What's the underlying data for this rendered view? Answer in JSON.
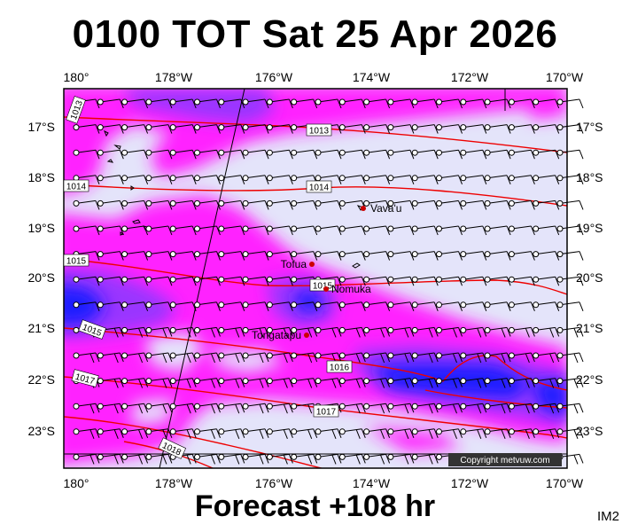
{
  "header": {
    "title": "0100 TOT Sat 25 Apr 2026"
  },
  "footer": {
    "label": "Forecast +108 hr",
    "tag": "IM2"
  },
  "copyright": "Copyright metvuw.com",
  "axes": {
    "lon_ticks": [
      "180°",
      "178°W",
      "176°W",
      "174°W",
      "172°W",
      "170°W"
    ],
    "lat_ticks": [
      "17°S",
      "18°S",
      "19°S",
      "20°S",
      "21°S",
      "22°S",
      "23°S"
    ]
  },
  "places": [
    {
      "name": "Vava'u"
    },
    {
      "name": "Tofua"
    },
    {
      "name": "Nomuka"
    },
    {
      "name": "Tongatapu"
    }
  ],
  "isobars": [
    "1013",
    "1013",
    "1014",
    "1014",
    "1015",
    "1015",
    "1015",
    "1016",
    "1017",
    "1017",
    "1018"
  ],
  "colors": {
    "background_field": "#e4e4fa",
    "precip_light": "#ff22ff",
    "precip_medium": "#9a36ff",
    "precip_heavy": "#1a1aff",
    "isobar": "#ee0000",
    "place_marker": "#cc0000"
  }
}
